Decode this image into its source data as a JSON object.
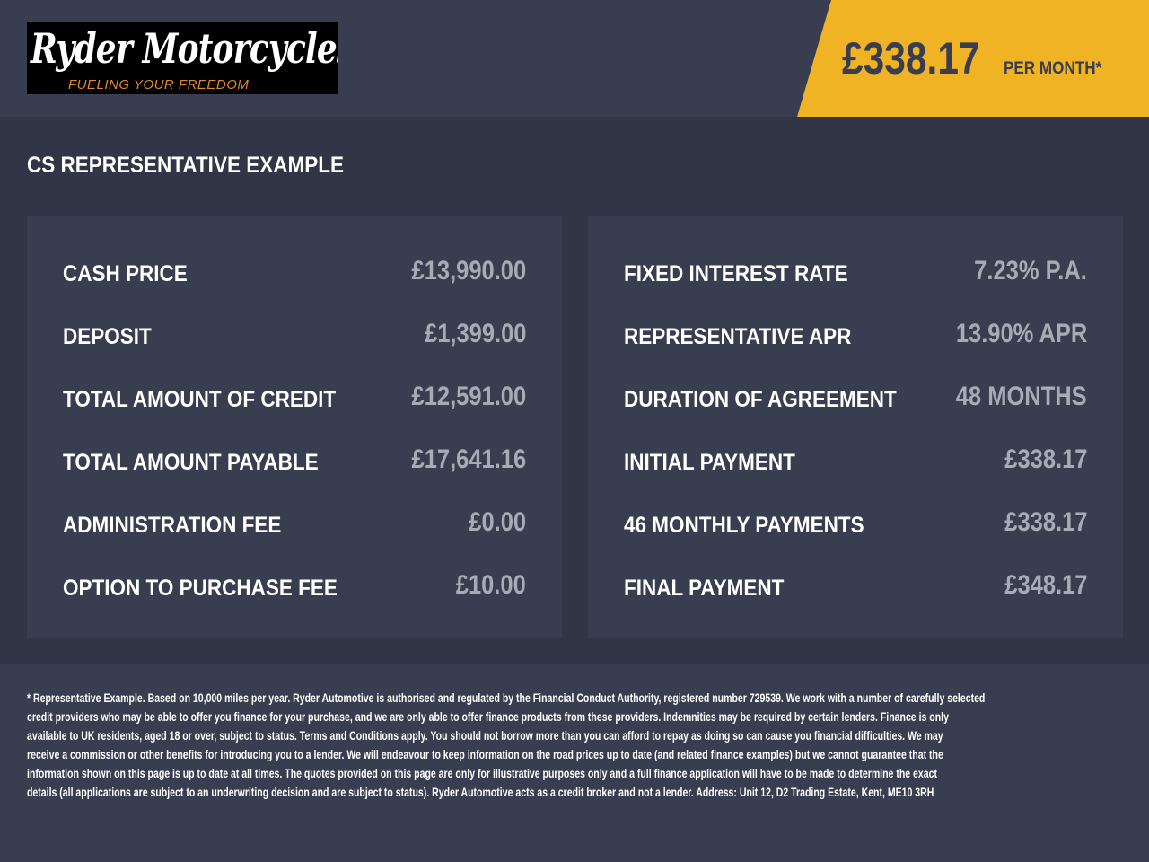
{
  "brand": {
    "name": "Ryder Motorcycles",
    "tagline": "FUELING YOUR FREEDOM"
  },
  "badge": {
    "amount": "£338.17",
    "suffix": "PER MONTH*",
    "color": "#f0b323"
  },
  "title": "CS REPRESENTATIVE EXAMPLE",
  "left": [
    {
      "label": "CASH PRICE",
      "value": "£13,990.00"
    },
    {
      "label": "DEPOSIT",
      "value": "£1,399.00"
    },
    {
      "label": "TOTAL AMOUNT OF CREDIT",
      "value": "£12,591.00"
    },
    {
      "label": "TOTAL AMOUNT PAYABLE",
      "value": "£17,641.16"
    },
    {
      "label": "ADMINISTRATION FEE",
      "value": "£0.00"
    },
    {
      "label": "OPTION TO PURCHASE FEE",
      "value": "£10.00"
    }
  ],
  "right": [
    {
      "label": "FIXED INTEREST RATE",
      "value": "7.23% P.A."
    },
    {
      "label": "REPRESENTATIVE APR",
      "value": "13.90% APR"
    },
    {
      "label": "DURATION OF AGREEMENT",
      "value": "48 MONTHS"
    },
    {
      "label": "INITIAL PAYMENT",
      "value": "£338.17"
    },
    {
      "label": "46 MONTHLY PAYMENTS",
      "value": "£338.17"
    },
    {
      "label": "FINAL PAYMENT",
      "value": "£348.17"
    }
  ],
  "disclaimer": [
    "* Representative Example. Based on 10,000 miles per year. Ryder Automotive is authorised and regulated by the Financial Conduct Authority, registered number 729539. We work with a number of carefully selected",
    "credit providers who may be able to offer you finance for your purchase, and we are only able to offer finance products from these providers. Indemnities may be required by certain lenders. Finance is only",
    "available to UK residents, aged 18 or over, subject to status. Terms and Conditions apply. You should not borrow more than you can afford to repay as doing so can cause you financial difficulties. We may",
    "receive a commission or other benefits for introducing you to a lender. We will endeavour to keep information on the road prices up to date (and related finance examples) but we cannot guarantee that the",
    "information shown on this page is up to date at all times. The quotes provided on this page are only for illustrative purposes only and a full finance application will have to be made to determine the exact",
    "details (all applications are subject to an underwriting decision and are subject to status). Ryder Automotive acts as a credit broker and not a lender. Address: Unit 12, D2 Trading Estate, Kent, ME10 3RH"
  ]
}
